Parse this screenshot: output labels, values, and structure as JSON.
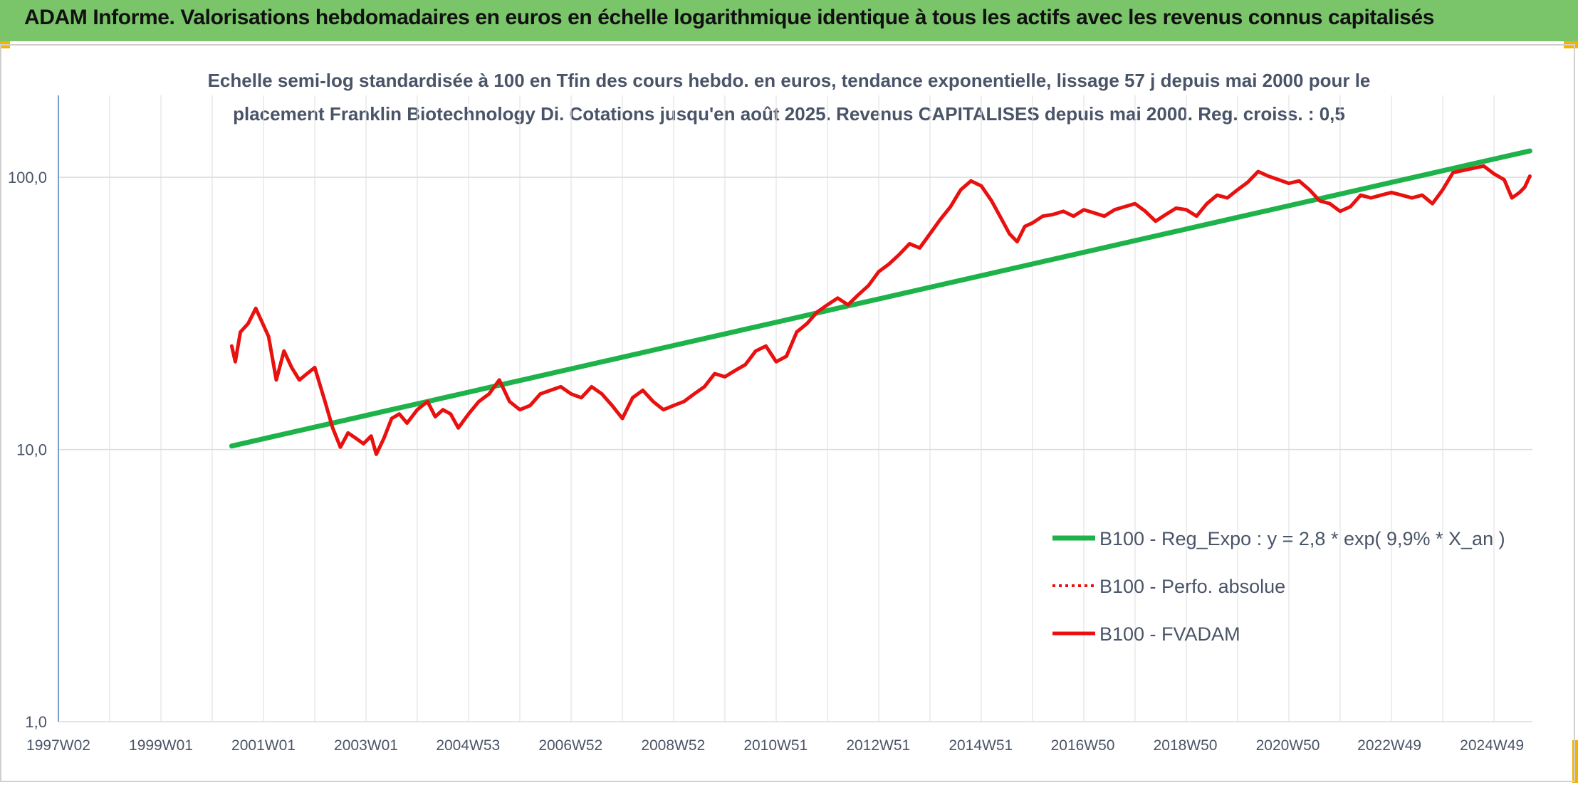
{
  "header": {
    "title": "ADAM Informe. Valorisations hebdomadaires en euros en échelle logarithmique identique à tous les actifs avec les revenus connus capitalisés"
  },
  "colors": {
    "header_bg": "#7ac46a",
    "accent_corner": "#f2b400",
    "trend": "#1db34a",
    "fund": "#e8110f"
  },
  "chart_data": {
    "type": "line",
    "subtitle_lines": [
      "Echelle semi-log standardisée à 100 en Tfin des cours hebdo. en euros, tendance exponentielle, lissage 57 j depuis mai 2000 pour le",
      "placement Franklin Biotechnology Di. Cotations jusqu'en août 2025. Revenus CAPITALISES depuis mai 2000. Reg. croiss. : 0,5"
    ],
    "y_scale": "log",
    "ylim": [
      1,
      200
    ],
    "y_ticks": [
      {
        "value": 1,
        "label": "1,0"
      },
      {
        "value": 10,
        "label": "10,0"
      },
      {
        "value": 100,
        "label": "100,0"
      }
    ],
    "xlim": [
      1997.0,
      2025.75
    ],
    "x_ticks": [
      {
        "value": 1997.0,
        "label": "1997W02"
      },
      {
        "value": 1999.0,
        "label": "1999W01"
      },
      {
        "value": 2001.0,
        "label": "2001W01"
      },
      {
        "value": 2003.0,
        "label": "2003W01"
      },
      {
        "value": 2004.99,
        "label": "2004W53"
      },
      {
        "value": 2006.99,
        "label": "2006W52"
      },
      {
        "value": 2008.99,
        "label": "2008W52"
      },
      {
        "value": 2010.99,
        "label": "2010W51"
      },
      {
        "value": 2012.99,
        "label": "2012W51"
      },
      {
        "value": 2014.99,
        "label": "2014W51"
      },
      {
        "value": 2016.98,
        "label": "2016W50"
      },
      {
        "value": 2018.98,
        "label": "2018W50"
      },
      {
        "value": 2020.98,
        "label": "2020W50"
      },
      {
        "value": 2022.96,
        "label": "2022W49"
      },
      {
        "value": 2024.96,
        "label": "2024W49"
      }
    ],
    "legend_placement": "bottom-right",
    "legend": [
      {
        "key": "trend",
        "label": "B100 - Reg_Expo : y = 2,8 * exp( 9,9% *  X_an )",
        "style": "solid"
      },
      {
        "key": "perf",
        "label": "B100 - Perfo. absolue",
        "style": "dotted"
      },
      {
        "key": "fund",
        "label": "B100 - FVADAM",
        "style": "solid"
      }
    ],
    "series": [
      {
        "key": "trend",
        "name": "B100 - Reg_Expo : y = 2,8 * exp( 9,9% *  X_an )",
        "x": [
          2000.38,
          2025.7
        ],
        "y": [
          10.3,
          125
        ]
      },
      {
        "key": "fund",
        "name": "B100 - FVADAM",
        "x": [
          2000.38,
          2000.45,
          2000.55,
          2000.7,
          2000.85,
          2000.95,
          2001.1,
          2001.25,
          2001.4,
          2001.55,
          2001.7,
          2001.85,
          2002.0,
          2002.2,
          2002.35,
          2002.5,
          2002.65,
          2002.8,
          2002.95,
          2003.1,
          2003.2,
          2003.35,
          2003.5,
          2003.65,
          2003.8,
          2004.0,
          2004.2,
          2004.35,
          2004.5,
          2004.65,
          2004.8,
          2005.0,
          2005.2,
          2005.4,
          2005.6,
          2005.8,
          2006.0,
          2006.2,
          2006.4,
          2006.6,
          2006.8,
          2007.0,
          2007.2,
          2007.4,
          2007.6,
          2007.8,
          2008.0,
          2008.2,
          2008.4,
          2008.6,
          2008.8,
          2009.0,
          2009.2,
          2009.4,
          2009.6,
          2009.8,
          2010.0,
          2010.2,
          2010.4,
          2010.6,
          2010.8,
          2011.0,
          2011.2,
          2011.4,
          2011.6,
          2011.8,
          2012.0,
          2012.2,
          2012.4,
          2012.6,
          2012.8,
          2013.0,
          2013.2,
          2013.4,
          2013.6,
          2013.8,
          2014.0,
          2014.2,
          2014.4,
          2014.6,
          2014.8,
          2015.0,
          2015.2,
          2015.4,
          2015.55,
          2015.7,
          2015.85,
          2016.0,
          2016.2,
          2016.4,
          2016.6,
          2016.8,
          2017.0,
          2017.2,
          2017.4,
          2017.6,
          2017.8,
          2018.0,
          2018.2,
          2018.4,
          2018.6,
          2018.8,
          2019.0,
          2019.2,
          2019.4,
          2019.6,
          2019.8,
          2020.0,
          2020.2,
          2020.4,
          2020.6,
          2020.8,
          2021.0,
          2021.2,
          2021.4,
          2021.6,
          2021.8,
          2022.0,
          2022.2,
          2022.4,
          2022.6,
          2022.8,
          2023.0,
          2023.2,
          2023.4,
          2023.6,
          2023.8,
          2024.0,
          2024.2,
          2024.4,
          2024.6,
          2024.8,
          2025.0,
          2025.2,
          2025.35,
          2025.5,
          2025.6,
          2025.7
        ],
        "y": [
          24,
          21,
          27,
          29,
          33,
          30,
          26,
          18,
          23,
          20,
          18,
          19,
          20,
          15,
          12,
          10.2,
          11.5,
          11,
          10.5,
          11.2,
          9.6,
          11,
          13,
          13.5,
          12.5,
          14,
          15,
          13.2,
          14,
          13.5,
          12,
          13.5,
          15,
          16,
          18,
          15,
          14,
          14.5,
          16,
          16.5,
          17,
          16,
          15.5,
          17,
          16,
          14.5,
          13,
          15.5,
          16.5,
          15,
          14,
          14.5,
          15,
          16,
          17,
          19,
          18.5,
          19.5,
          20.5,
          23,
          24,
          21,
          22,
          27,
          29,
          32,
          34,
          36,
          34,
          37,
          40,
          45,
          48,
          52,
          57,
          55,
          62,
          70,
          78,
          90,
          97,
          93,
          82,
          70,
          62,
          58,
          66,
          68,
          72,
          73,
          75,
          72,
          76,
          74,
          72,
          76,
          78,
          80,
          75,
          69,
          73,
          77,
          76,
          72,
          80,
          86,
          84,
          90,
          96,
          105,
          101,
          98,
          95,
          97,
          90,
          82,
          80,
          75,
          78,
          86,
          84,
          86,
          88,
          86,
          84,
          86,
          80,
          90,
          104,
          106,
          108,
          110,
          103,
          98,
          84,
          88,
          92,
          101
        ]
      }
    ]
  }
}
